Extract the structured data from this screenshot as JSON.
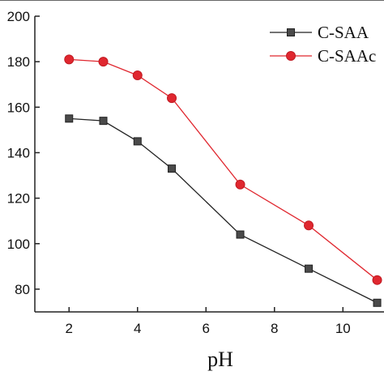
{
  "chart_data": {
    "type": "line",
    "xlabel": "pH",
    "ylabel": "",
    "xlim": [
      1,
      11.2
    ],
    "ylim": [
      70,
      200
    ],
    "x_ticks": [
      2,
      4,
      6,
      8,
      10
    ],
    "y_ticks": [
      80,
      100,
      120,
      140,
      160,
      180,
      200
    ],
    "legend_position": "top-right",
    "grid": false,
    "series": [
      {
        "name": "C-SAA",
        "color": "#222222",
        "marker": "square",
        "x": [
          2,
          3,
          4,
          5,
          7,
          9,
          11
        ],
        "y": [
          155,
          154,
          145,
          133,
          104,
          89,
          74
        ]
      },
      {
        "name": "C-SAAc",
        "color": "#e0272f",
        "marker": "circle",
        "x": [
          2,
          3,
          4,
          5,
          7,
          9,
          11
        ],
        "y": [
          181,
          180,
          174,
          164,
          126,
          108,
          84
        ]
      }
    ]
  }
}
